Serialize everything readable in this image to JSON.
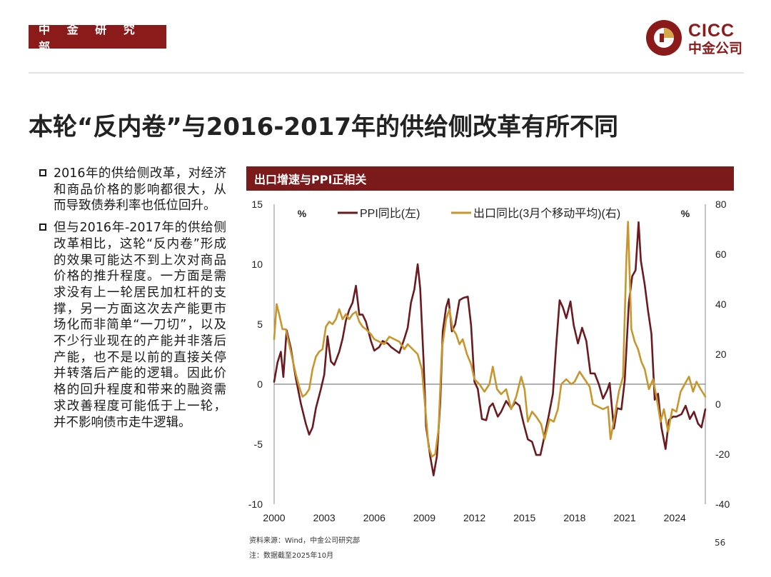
{
  "header": {
    "dept_label": "中 金 研 究 部",
    "logo_en": "CICC",
    "logo_cn": "中金公司",
    "brand_color": "#8b1a1a"
  },
  "title": "本轮“反内卷”与2016-2017年的供给侧改革有所不同",
  "bullets": [
    "2016年的供给侧改革，对经济和商品价格的影响都很大，从而导致债券利率也低位回升。",
    "但与2016年-2017年的供给侧改革相比，这轮“反内卷”形成的效果可能达不到上次对商品价格的推升程度。一方面是需求没有上一轮居民加杠杆的支撑，另一方面这次去产能更市场化而非简单“一刀切”，以及不少行业现在的产能并非落后产能，也不是以前的直接关停并转落后产能的逻辑。因此价格的回升程度和带来的融资需求改善程度可能低于上一轮，并不影响债市走牛逻辑。"
  ],
  "chart_header": "出口增速与PPI正相关",
  "chart_data": {
    "type": "line",
    "title": "出口增速与PPI正相关",
    "left_axis": {
      "label": "%",
      "range": [
        -10,
        15
      ],
      "ticks": [
        -10,
        -5,
        0,
        5,
        10,
        15
      ]
    },
    "right_axis": {
      "label": "%",
      "range": [
        -40,
        80
      ],
      "ticks": [
        -40,
        -20,
        0,
        20,
        40,
        60,
        80
      ]
    },
    "x_axis": {
      "range": [
        2000,
        2025.83
      ],
      "ticks": [
        2000,
        2003,
        2006,
        2009,
        2012,
        2015,
        2018,
        2021,
        2024
      ]
    },
    "series": [
      {
        "name": "PPI同比(左)",
        "axis": "left",
        "color": "#6b1a1f",
        "points": [
          [
            2000.0,
            0.2
          ],
          [
            2000.2,
            1.8
          ],
          [
            2000.4,
            2.7
          ],
          [
            2000.55,
            0.6
          ],
          [
            2000.75,
            4.5
          ],
          [
            2001.0,
            3.0
          ],
          [
            2001.3,
            0.5
          ],
          [
            2001.6,
            -1.6
          ],
          [
            2001.9,
            -3.3
          ],
          [
            2002.1,
            -4.2
          ],
          [
            2002.3,
            -3.6
          ],
          [
            2002.5,
            -2.0
          ],
          [
            2002.8,
            -0.4
          ],
          [
            2003.0,
            0.8
          ],
          [
            2003.2,
            4.0
          ],
          [
            2003.4,
            1.9
          ],
          [
            2003.6,
            1.6
          ],
          [
            2003.9,
            2.7
          ],
          [
            2004.1,
            3.8
          ],
          [
            2004.3,
            5.3
          ],
          [
            2004.5,
            6.2
          ],
          [
            2004.7,
            6.8
          ],
          [
            2004.9,
            8.2
          ],
          [
            2005.1,
            5.8
          ],
          [
            2005.3,
            5.8
          ],
          [
            2005.5,
            5.2
          ],
          [
            2005.8,
            3.6
          ],
          [
            2006.0,
            2.8
          ],
          [
            2006.3,
            3.1
          ],
          [
            2006.5,
            3.6
          ],
          [
            2006.8,
            3.4
          ],
          [
            2007.0,
            3.1
          ],
          [
            2007.3,
            2.8
          ],
          [
            2007.5,
            2.6
          ],
          [
            2007.8,
            3.8
          ],
          [
            2008.0,
            4.7
          ],
          [
            2008.2,
            6.8
          ],
          [
            2008.4,
            7.9
          ],
          [
            2008.6,
            10.0
          ],
          [
            2008.75,
            8.0
          ],
          [
            2008.95,
            2.0
          ],
          [
            2009.1,
            -3.5
          ],
          [
            2009.35,
            -6.0
          ],
          [
            2009.55,
            -7.6
          ],
          [
            2009.75,
            -6.0
          ],
          [
            2009.95,
            -1.5
          ],
          [
            2010.1,
            4.4
          ],
          [
            2010.3,
            6.4
          ],
          [
            2010.45,
            7.1
          ],
          [
            2010.65,
            4.4
          ],
          [
            2010.85,
            5.0
          ],
          [
            2011.1,
            7.0
          ],
          [
            2011.35,
            7.2
          ],
          [
            2011.6,
            7.3
          ],
          [
            2011.8,
            4.9
          ],
          [
            2012.0,
            0.2
          ],
          [
            2012.2,
            -0.4
          ],
          [
            2012.45,
            -2.9
          ],
          [
            2012.7,
            -3.0
          ],
          [
            2012.9,
            -1.9
          ],
          [
            2013.1,
            -1.6
          ],
          [
            2013.4,
            -2.7
          ],
          [
            2013.6,
            -2.3
          ],
          [
            2013.9,
            -1.4
          ],
          [
            2014.2,
            -2.0
          ],
          [
            2014.45,
            -1.5
          ],
          [
            2014.7,
            -1.8
          ],
          [
            2014.95,
            -3.3
          ],
          [
            2015.2,
            -4.6
          ],
          [
            2015.45,
            -4.8
          ],
          [
            2015.7,
            -5.9
          ],
          [
            2015.95,
            -5.9
          ],
          [
            2016.2,
            -4.3
          ],
          [
            2016.45,
            -2.6
          ],
          [
            2016.7,
            -0.8
          ],
          [
            2016.9,
            3.3
          ],
          [
            2017.1,
            7.0
          ],
          [
            2017.3,
            6.4
          ],
          [
            2017.5,
            5.5
          ],
          [
            2017.75,
            6.9
          ],
          [
            2017.95,
            4.9
          ],
          [
            2018.2,
            3.4
          ],
          [
            2018.45,
            4.7
          ],
          [
            2018.7,
            3.6
          ],
          [
            2018.95,
            0.9
          ],
          [
            2019.2,
            0.9
          ],
          [
            2019.45,
            0.0
          ],
          [
            2019.7,
            -1.2
          ],
          [
            2019.95,
            -0.5
          ],
          [
            2020.1,
            0.1
          ],
          [
            2020.35,
            -3.7
          ],
          [
            2020.55,
            -2.0
          ],
          [
            2020.8,
            -2.1
          ],
          [
            2021.0,
            0.3
          ],
          [
            2021.25,
            6.8
          ],
          [
            2021.45,
            9.0
          ],
          [
            2021.65,
            9.5
          ],
          [
            2021.83,
            13.5
          ],
          [
            2021.97,
            10.3
          ],
          [
            2022.2,
            8.3
          ],
          [
            2022.4,
            6.1
          ],
          [
            2022.6,
            4.2
          ],
          [
            2022.8,
            -1.3
          ],
          [
            2023.0,
            -0.8
          ],
          [
            2023.2,
            -3.6
          ],
          [
            2023.45,
            -5.4
          ],
          [
            2023.65,
            -3.0
          ],
          [
            2023.9,
            -2.7
          ],
          [
            2024.1,
            -2.7
          ],
          [
            2024.4,
            -2.5
          ],
          [
            2024.65,
            -1.8
          ],
          [
            2024.9,
            -2.9
          ],
          [
            2025.15,
            -2.3
          ],
          [
            2025.4,
            -3.3
          ],
          [
            2025.6,
            -3.6
          ],
          [
            2025.83,
            -2.1
          ]
        ]
      },
      {
        "name": "出口同比(3月个移动平均)(右)",
        "axis": "right",
        "color": "#c8962c",
        "points": [
          [
            2000.0,
            26
          ],
          [
            2000.15,
            40
          ],
          [
            2000.3,
            36
          ],
          [
            2000.5,
            30
          ],
          [
            2000.7,
            30
          ],
          [
            2000.9,
            24
          ],
          [
            2001.1,
            18
          ],
          [
            2001.3,
            12
          ],
          [
            2001.5,
            7
          ],
          [
            2001.7,
            3
          ],
          [
            2001.9,
            4
          ],
          [
            2002.1,
            6
          ],
          [
            2002.3,
            14
          ],
          [
            2002.5,
            19
          ],
          [
            2002.7,
            21
          ],
          [
            2002.9,
            22
          ],
          [
            2003.1,
            31
          ],
          [
            2003.3,
            33
          ],
          [
            2003.5,
            32
          ],
          [
            2003.7,
            34
          ],
          [
            2003.9,
            38
          ],
          [
            2004.1,
            34
          ],
          [
            2004.3,
            36
          ],
          [
            2004.5,
            34
          ],
          [
            2004.7,
            36
          ],
          [
            2004.9,
            37
          ],
          [
            2005.1,
            33
          ],
          [
            2005.3,
            31
          ],
          [
            2005.5,
            30
          ],
          [
            2005.8,
            28
          ],
          [
            2006.0,
            26
          ],
          [
            2006.3,
            25
          ],
          [
            2006.6,
            24
          ],
          [
            2006.9,
            27
          ],
          [
            2007.2,
            26
          ],
          [
            2007.5,
            25
          ],
          [
            2007.8,
            22
          ],
          [
            2008.0,
            24
          ],
          [
            2008.3,
            22
          ],
          [
            2008.6,
            20
          ],
          [
            2008.85,
            14
          ],
          [
            2009.05,
            -1
          ],
          [
            2009.25,
            -17
          ],
          [
            2009.45,
            -21
          ],
          [
            2009.65,
            -20
          ],
          [
            2009.85,
            -10
          ],
          [
            2010.05,
            22
          ],
          [
            2010.3,
            34
          ],
          [
            2010.5,
            38
          ],
          [
            2010.7,
            30
          ],
          [
            2010.9,
            28
          ],
          [
            2011.1,
            24
          ],
          [
            2011.3,
            26
          ],
          [
            2011.55,
            20
          ],
          [
            2011.8,
            16
          ],
          [
            2012.0,
            10
          ],
          [
            2012.3,
            8
          ],
          [
            2012.6,
            5
          ],
          [
            2012.9,
            8
          ],
          [
            2013.1,
            15
          ],
          [
            2013.35,
            6
          ],
          [
            2013.6,
            4
          ],
          [
            2013.9,
            6
          ],
          [
            2014.2,
            -2
          ],
          [
            2014.5,
            3
          ],
          [
            2014.8,
            11
          ],
          [
            2015.0,
            6
          ],
          [
            2015.2,
            -7
          ],
          [
            2015.45,
            -3
          ],
          [
            2015.7,
            -5
          ],
          [
            2016.0,
            -8
          ],
          [
            2016.2,
            -14
          ],
          [
            2016.5,
            -6
          ],
          [
            2016.75,
            -7
          ],
          [
            2017.0,
            -2
          ],
          [
            2017.2,
            8
          ],
          [
            2017.5,
            10
          ],
          [
            2017.8,
            8
          ],
          [
            2018.0,
            9
          ],
          [
            2018.3,
            13
          ],
          [
            2018.6,
            10
          ],
          [
            2018.9,
            7
          ],
          [
            2019.1,
            0
          ],
          [
            2019.4,
            -1
          ],
          [
            2019.7,
            -2
          ],
          [
            2020.0,
            -1
          ],
          [
            2020.15,
            -14
          ],
          [
            2020.4,
            -5
          ],
          [
            2020.65,
            5
          ],
          [
            2020.9,
            11
          ],
          [
            2021.1,
            58
          ],
          [
            2021.2,
            73
          ],
          [
            2021.4,
            30
          ],
          [
            2021.6,
            25
          ],
          [
            2021.8,
            22
          ],
          [
            2022.0,
            17
          ],
          [
            2022.2,
            14
          ],
          [
            2022.45,
            6
          ],
          [
            2022.7,
            10
          ],
          [
            2022.9,
            3
          ],
          [
            2023.15,
            -7
          ],
          [
            2023.35,
            -2
          ],
          [
            2023.6,
            -11
          ],
          [
            2023.85,
            -2
          ],
          [
            2024.1,
            -3
          ],
          [
            2024.35,
            5
          ],
          [
            2024.6,
            8
          ],
          [
            2024.85,
            11
          ],
          [
            2025.1,
            5
          ],
          [
            2025.3,
            9
          ],
          [
            2025.55,
            6
          ],
          [
            2025.83,
            3
          ]
        ]
      }
    ]
  },
  "source_note": "资料来源：Wind，中金公司研究部",
  "date_note": "注：数据截至2025年10月",
  "page_number": "56"
}
